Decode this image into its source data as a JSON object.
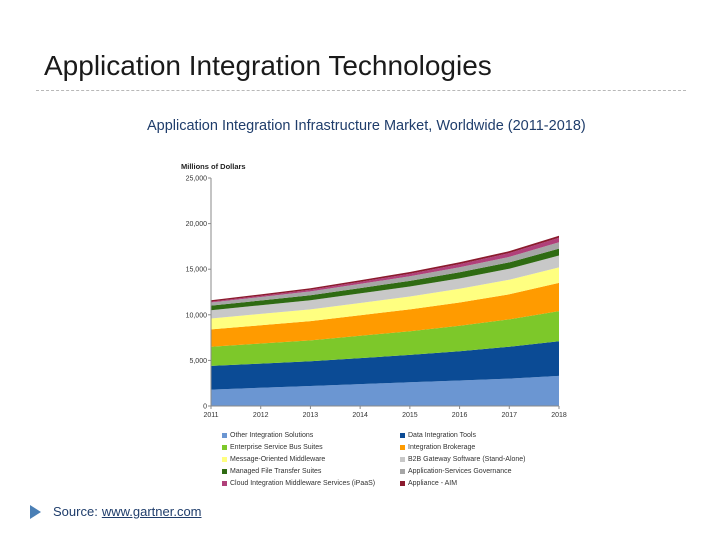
{
  "slide": {
    "title": "Application Integration Technologies",
    "subtitle": "Application Integration Infrastructure Market, Worldwide (2011-2018)",
    "source_label": "Source:",
    "source_link": "www.gartner.com"
  },
  "chart_data": {
    "type": "area",
    "stacked": true,
    "ylabel": "Millions of Dollars",
    "ylim": [
      0,
      25000
    ],
    "yticks": [
      0,
      5000,
      10000,
      15000,
      20000,
      25000
    ],
    "ytick_labels": [
      "0",
      "5,000",
      "10,000",
      "15,000",
      "20,000",
      "25,000"
    ],
    "x": [
      "2011",
      "2012",
      "2013",
      "2014",
      "2015",
      "2016",
      "2017",
      "2018"
    ],
    "grid": false,
    "legend_position": "bottom",
    "series": [
      {
        "name": "Other Integration Solutions",
        "color": "#6b96d2",
        "values": [
          1800,
          2000,
          2200,
          2400,
          2600,
          2800,
          3000,
          3300
        ]
      },
      {
        "name": "Data Integration Tools",
        "color": "#0b4b95",
        "values": [
          2600,
          2650,
          2700,
          2850,
          3000,
          3200,
          3500,
          3800
        ]
      },
      {
        "name": "Enterprise Service Bus Suites",
        "color": "#7dc82a",
        "values": [
          2100,
          2200,
          2300,
          2450,
          2600,
          2800,
          3000,
          3300
        ]
      },
      {
        "name": "Integration Brokerage",
        "color": "#ff9b00",
        "values": [
          1900,
          2000,
          2100,
          2250,
          2400,
          2550,
          2750,
          3100
        ]
      },
      {
        "name": "Message-Oriented Middleware",
        "color": "#ffff80",
        "values": [
          1200,
          1250,
          1300,
          1350,
          1400,
          1500,
          1600,
          1700
        ]
      },
      {
        "name": "B2B Gateway Software (Stand-Alone)",
        "color": "#c8c8c8",
        "values": [
          900,
          950,
          1000,
          1050,
          1100,
          1150,
          1200,
          1300
        ]
      },
      {
        "name": "Managed File Transfer Suites",
        "color": "#2f6b12",
        "values": [
          500,
          520,
          550,
          580,
          620,
          660,
          700,
          750
        ]
      },
      {
        "name": "Application-Services Governance",
        "color": "#a6a6a6",
        "values": [
          350,
          380,
          420,
          460,
          500,
          550,
          600,
          700
        ]
      },
      {
        "name": "Cloud Integration Middleware Services (iPaaS)",
        "color": "#b0407a",
        "values": [
          100,
          130,
          170,
          220,
          280,
          350,
          420,
          500
        ]
      },
      {
        "name": "Appliance - AIM",
        "color": "#8b1a2e",
        "values": [
          150,
          160,
          170,
          180,
          190,
          200,
          210,
          220
        ]
      }
    ]
  }
}
